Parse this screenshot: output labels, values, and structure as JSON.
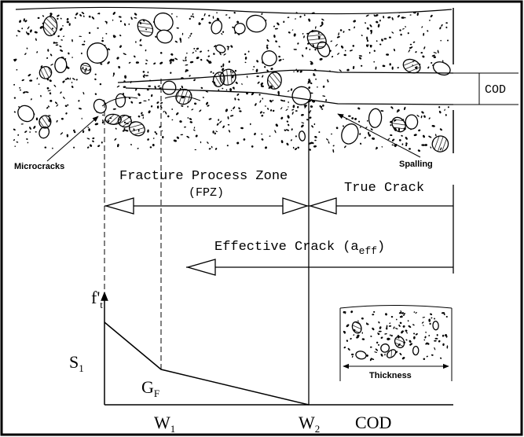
{
  "top_labels": {
    "cod": "COD",
    "microcracks": "Microcracks",
    "spalling": "Spalling"
  },
  "zones": {
    "fpz": "Fracture Process Zone",
    "fpz_abbr": "(FPZ)",
    "true_crack": "True Crack",
    "effective_crack": {
      "text": "Effective Crack (a",
      "subscript": "eff",
      "suffix": ")"
    }
  },
  "graph": {
    "y_label": {
      "text": "f'",
      "subscript": "t"
    },
    "s1": {
      "text": "S",
      "subscript": "1"
    },
    "gf": {
      "text": "G",
      "subscript": "F"
    },
    "w1": {
      "text": "W",
      "subscript": "1"
    },
    "w2": {
      "text": "W",
      "subscript": "2"
    },
    "x_label": "COD"
  },
  "inset": {
    "label": "Thickness"
  }
}
